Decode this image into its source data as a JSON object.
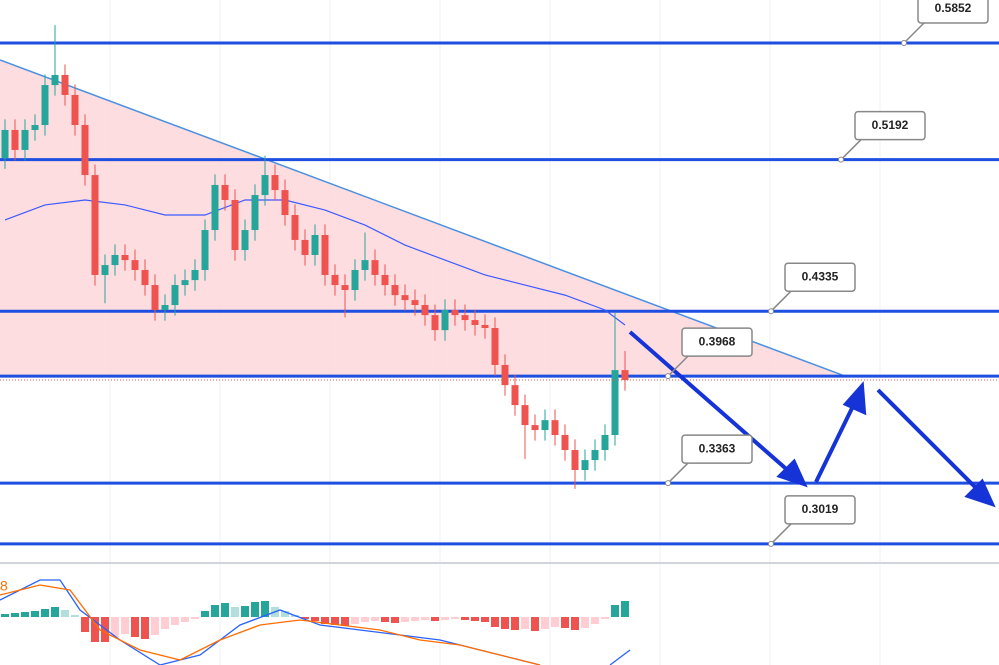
{
  "chart_data": {
    "type": "candlestick",
    "ylim": [
      0.2928,
      0.6095
    ],
    "open": [
      0.52,
      0.536,
      0.5247,
      0.536,
      0.5388,
      0.5614,
      0.5671,
      0.5558,
      0.5388,
      0.5105,
      0.454,
      0.4596,
      0.4653,
      0.4624,
      0.4568,
      0.4483,
      0.4342,
      0.437,
      0.4483,
      0.4511,
      0.4568,
      0.4794,
      0.5049,
      0.4964,
      0.4681,
      0.4794,
      0.4992,
      0.5105,
      0.502,
      0.4879,
      0.4738,
      0.4653,
      0.4766,
      0.454,
      0.4483,
      0.4455,
      0.4568,
      0.4624,
      0.454,
      0.4483,
      0.4426,
      0.4398,
      0.437,
      0.4313,
      0.4228,
      0.4342,
      0.4313,
      0.4285,
      0.4257,
      0.424,
      0.4031,
      0.3917,
      0.3804,
      0.3691,
      0.3663,
      0.3719,
      0.3635,
      0.355,
      0.3437,
      0.3493,
      0.355,
      0.3635,
      0.4002
    ],
    "high": [
      0.542,
      0.542,
      0.542,
      0.5448,
      0.5674,
      0.5953,
      0.5731,
      0.5618,
      0.5448,
      0.5165,
      0.4656,
      0.4713,
      0.4713,
      0.4684,
      0.4628,
      0.4543,
      0.443,
      0.4543,
      0.4571,
      0.4628,
      0.4854,
      0.5109,
      0.5109,
      0.5024,
      0.4854,
      0.5052,
      0.5215,
      0.5165,
      0.508,
      0.4939,
      0.4798,
      0.4826,
      0.4826,
      0.46,
      0.4543,
      0.4628,
      0.478,
      0.4684,
      0.46,
      0.4543,
      0.4486,
      0.4458,
      0.443,
      0.4373,
      0.4402,
      0.4402,
      0.4373,
      0.4345,
      0.4317,
      0.43,
      0.4091,
      0.3977,
      0.3864,
      0.3751,
      0.3779,
      0.3779,
      0.3695,
      0.361,
      0.3553,
      0.361,
      0.3695,
      0.4325,
      0.411
    ],
    "low": [
      0.514,
      0.5187,
      0.5187,
      0.53,
      0.5328,
      0.5554,
      0.5498,
      0.5328,
      0.5045,
      0.448,
      0.438,
      0.4536,
      0.4564,
      0.4508,
      0.4423,
      0.4282,
      0.4282,
      0.431,
      0.4423,
      0.4451,
      0.4508,
      0.4734,
      0.4904,
      0.4621,
      0.4621,
      0.4734,
      0.4932,
      0.496,
      0.4819,
      0.4678,
      0.4593,
      0.4593,
      0.448,
      0.4423,
      0.43,
      0.4395,
      0.4508,
      0.448,
      0.4423,
      0.4366,
      0.4338,
      0.431,
      0.4253,
      0.4168,
      0.4168,
      0.4253,
      0.4225,
      0.4197,
      0.418,
      0.3971,
      0.3857,
      0.3744,
      0.35,
      0.3603,
      0.3603,
      0.3575,
      0.349,
      0.333,
      0.3377,
      0.3433,
      0.349,
      0.3575,
      0.3886
    ],
    "close": [
      0.536,
      0.5247,
      0.536,
      0.5388,
      0.5614,
      0.5671,
      0.5558,
      0.5388,
      0.5105,
      0.454,
      0.4596,
      0.4653,
      0.4624,
      0.4568,
      0.4483,
      0.4342,
      0.437,
      0.4483,
      0.4511,
      0.4568,
      0.4794,
      0.5049,
      0.4964,
      0.4681,
      0.4794,
      0.4992,
      0.5105,
      0.502,
      0.4879,
      0.4738,
      0.4653,
      0.4766,
      0.454,
      0.4483,
      0.4455,
      0.4568,
      0.4624,
      0.454,
      0.4483,
      0.4426,
      0.4398,
      0.437,
      0.4313,
      0.4228,
      0.4342,
      0.4313,
      0.4285,
      0.4257,
      0.424,
      0.4031,
      0.3917,
      0.3804,
      0.3691,
      0.3663,
      0.3719,
      0.3635,
      0.355,
      0.3437,
      0.3493,
      0.355,
      0.3635,
      0.4002,
      0.3946
    ],
    "up_color": "#26a69a",
    "down_color": "#ef5350",
    "ma": {
      "color": "#3d5afe",
      "x": [
        0,
        4,
        8,
        12,
        16,
        20,
        24,
        28,
        32,
        36,
        40,
        44,
        48,
        52,
        56,
        60,
        62
      ],
      "values": [
        0.4851,
        0.4936,
        0.4964,
        0.4936,
        0.4879,
        0.4879,
        0.4964,
        0.4964,
        0.4907,
        0.4822,
        0.4709,
        0.4624,
        0.454,
        0.4483,
        0.4426,
        0.4342,
        0.4257
      ]
    },
    "trendline": {
      "color": "#4a90e2",
      "fill": "#fcd5d8",
      "x": [
        -0.5,
        84
      ],
      "values": [
        0.5756,
        0.3968
      ]
    },
    "levels": [
      0.5852,
      0.5192,
      0.4335,
      0.3968,
      0.3363,
      0.3019
    ],
    "level_color": "#1f4fe0",
    "macd": {
      "label": "8",
      "ylim": [
        -0.96,
        1.04
      ],
      "histogram": [
        0.06,
        0.08,
        0.1,
        0.12,
        0.16,
        0.2,
        0.14,
        0.04,
        -0.3,
        -0.5,
        -0.5,
        -0.4,
        -0.34,
        -0.4,
        -0.44,
        -0.36,
        -0.24,
        -0.16,
        -0.1,
        -0.04,
        0.12,
        0.24,
        0.28,
        0.2,
        0.22,
        0.3,
        0.32,
        0.2,
        0.12,
        0.04,
        -0.04,
        -0.08,
        -0.14,
        -0.16,
        -0.18,
        -0.14,
        -0.1,
        -0.08,
        -0.1,
        -0.12,
        -0.1,
        -0.08,
        -0.06,
        -0.08,
        -0.06,
        -0.04,
        -0.06,
        -0.08,
        -0.1,
        -0.2,
        -0.24,
        -0.26,
        -0.24,
        -0.28,
        -0.24,
        -0.2,
        -0.22,
        -0.26,
        -0.22,
        -0.14,
        -0.04,
        0.24,
        0.32
      ],
      "macd_line": {
        "color": "#2962ff",
        "x": [
          -0.5,
          3.5,
          5.5,
          7.5,
          11.5,
          15.5,
          19.5,
          23.5,
          27.5,
          31.5,
          35.5,
          39.5,
          43.5,
          47.5,
          51.5,
          53.5,
          57,
          60.5,
          62.5
        ],
        "values": [
          0.34,
          0.74,
          0.74,
          0.14,
          -0.46,
          -0.96,
          -0.76,
          -0.16,
          0.14,
          -0.16,
          -0.26,
          -0.36,
          -0.46,
          -0.66,
          -0.86,
          -0.96,
          null,
          -0.96,
          -0.66
        ]
      },
      "signal_line": {
        "color": "#ff6d00",
        "x": [
          -0.5,
          3.5,
          6.5,
          9.5,
          13.5,
          17.5,
          21.5,
          25.5,
          29.5,
          33.5,
          37.5,
          41.5,
          45.5,
          49.5,
          53.5
        ],
        "values": [
          0.44,
          0.64,
          0.54,
          -0.26,
          -0.66,
          -0.86,
          -0.46,
          -0.16,
          -0.06,
          -0.16,
          -0.26,
          -0.46,
          -0.56,
          -0.76,
          -0.96
        ]
      }
    }
  }
}
